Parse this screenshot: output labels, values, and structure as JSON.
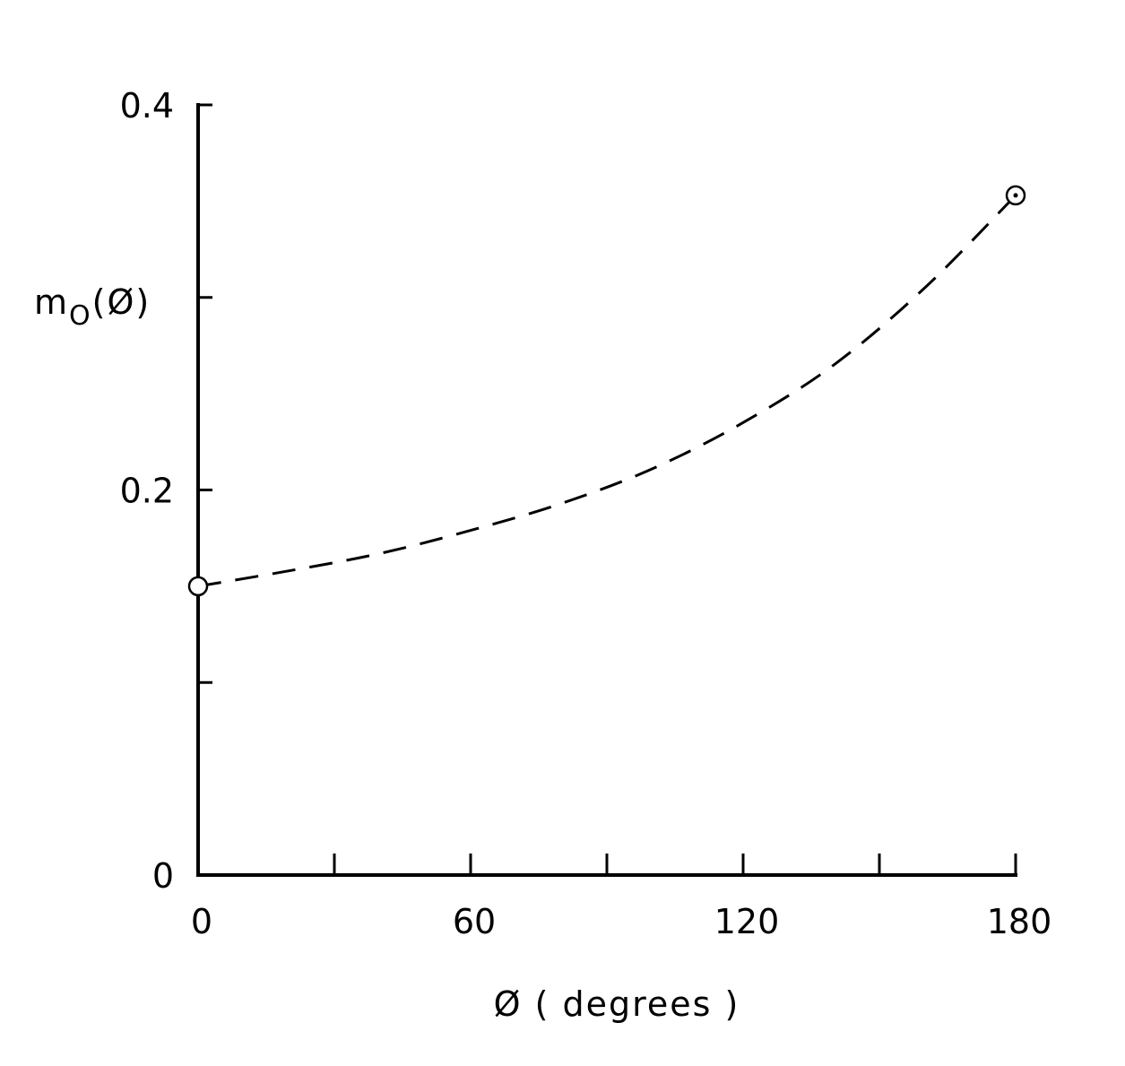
{
  "chart_data": {
    "type": "line",
    "title": "",
    "xlabel": "Ø ( degrees )",
    "ylabel": "m",
    "ylabel_sub": "O",
    "ylabel_arg": "(Ø)",
    "xlim": [
      0,
      180
    ],
    "ylim": [
      0,
      0.4
    ],
    "x_ticks": [
      0,
      30,
      60,
      90,
      120,
      150,
      180
    ],
    "x_tick_labels": [
      "0",
      "60",
      "120",
      "180"
    ],
    "x_tick_label_values": [
      0,
      60,
      120,
      180
    ],
    "y_ticks": [
      0,
      0.1,
      0.2,
      0.3,
      0.4
    ],
    "y_tick_labels": [
      "0",
      "0.2",
      "0.4"
    ],
    "y_tick_label_values": [
      0,
      0.2,
      0.4
    ],
    "grid": false,
    "series": [
      {
        "style": "dashed",
        "x": [
          0,
          20,
          40,
          60,
          80,
          100,
          120,
          140,
          160,
          180
        ],
        "y": [
          0.15,
          0.158,
          0.167,
          0.179,
          0.193,
          0.211,
          0.235,
          0.265,
          0.305,
          0.353
        ]
      }
    ],
    "markers": [
      {
        "x": 0,
        "y": 0.15,
        "style": "open-circle"
      },
      {
        "x": 180,
        "y": 0.353,
        "style": "circle-dot"
      }
    ]
  }
}
